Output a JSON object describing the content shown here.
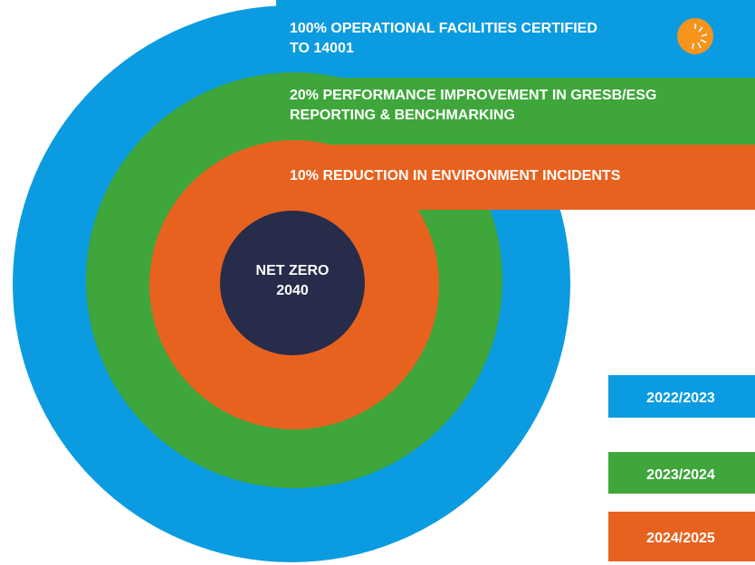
{
  "center": {
    "lines": [
      "NET ZERO",
      "2040"
    ]
  },
  "targets": [
    {
      "lines": [
        "100% OPERATIONAL FACILITIES CERTIFIED",
        "TO 14001"
      ]
    },
    {
      "lines": [
        "20% PERFORMANCE IMPROVEMENT IN GRESB/ESG",
        "REPORTING & BENCHMARKING"
      ]
    },
    {
      "lines": [
        "10% REDUCTION IN ENVIRONMENT INCIDENTS"
      ]
    }
  ],
  "legend": [
    "2022/2023",
    "2023/2024",
    "2024/2025"
  ]
}
